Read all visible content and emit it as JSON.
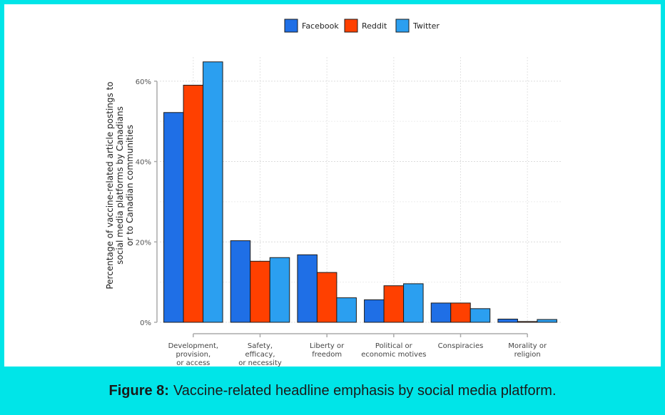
{
  "chart_data": {
    "type": "bar",
    "categories": [
      [
        "Development,",
        "provision,",
        "or access"
      ],
      [
        "Safety,",
        "efficacy,",
        "or necessity"
      ],
      [
        "Liberty or",
        "freedom"
      ],
      [
        "Political or",
        "economic motives"
      ],
      [
        "Conspiracies"
      ],
      [
        "Morality or",
        "religion"
      ]
    ],
    "series": [
      {
        "name": "Facebook",
        "color": "#1f6fe6",
        "values": [
          52.2,
          20.3,
          16.8,
          5.6,
          4.8,
          0.8
        ]
      },
      {
        "name": "Reddit",
        "color": "#ff4000",
        "values": [
          59.0,
          15.2,
          12.4,
          9.1,
          4.8,
          0.2
        ]
      },
      {
        "name": "Twitter",
        "color": "#2b9ff0",
        "values": [
          64.8,
          16.1,
          6.1,
          9.6,
          3.4,
          0.7
        ]
      }
    ],
    "ylim": [
      0,
      66
    ],
    "yticks": [
      0,
      20,
      40,
      60
    ],
    "ytick_labels": [
      "0%",
      "20%",
      "40%",
      "60%"
    ],
    "ylabel": [
      "Percentage of vaccine-related article postings to",
      "social media platforms by Canadians",
      "or to Canadian communities"
    ],
    "xlabel": "",
    "grid": true,
    "legend_position": "top-center"
  },
  "caption": {
    "label": "Figure 8:",
    "text": "Vaccine-related headline emphasis by social media platform."
  }
}
